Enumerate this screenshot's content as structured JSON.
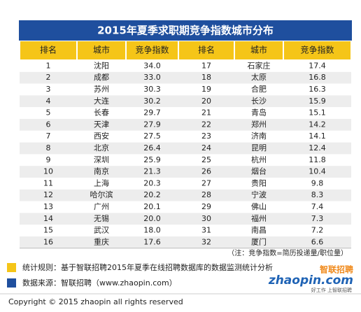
{
  "header": {
    "title": "2015年夏季求职期竞争指数城市分布"
  },
  "table": {
    "columns": [
      "排名",
      "城市",
      "竞争指数",
      "排名",
      "城市",
      "竞争指数"
    ],
    "rows": [
      [
        "1",
        "沈阳",
        "34.0",
        "17",
        "石家庄",
        "17.4"
      ],
      [
        "2",
        "成都",
        "33.0",
        "18",
        "太原",
        "16.8"
      ],
      [
        "3",
        "苏州",
        "30.3",
        "19",
        "合肥",
        "16.3"
      ],
      [
        "4",
        "大连",
        "30.2",
        "20",
        "长沙",
        "15.9"
      ],
      [
        "5",
        "长春",
        "29.7",
        "21",
        "青岛",
        "15.1"
      ],
      [
        "6",
        "天津",
        "27.9",
        "22",
        "郑州",
        "14.2"
      ],
      [
        "7",
        "西安",
        "27.5",
        "23",
        "济南",
        "14.1"
      ],
      [
        "8",
        "北京",
        "26.4",
        "24",
        "昆明",
        "12.4"
      ],
      [
        "9",
        "深圳",
        "25.9",
        "25",
        "杭州",
        "11.8"
      ],
      [
        "10",
        "南京",
        "21.3",
        "26",
        "烟台",
        "10.4"
      ],
      [
        "11",
        "上海",
        "20.3",
        "27",
        "贵阳",
        "9.8"
      ],
      [
        "12",
        "哈尔滨",
        "20.2",
        "28",
        "宁波",
        "8.3"
      ],
      [
        "13",
        "广州",
        "20.1",
        "29",
        "佛山",
        "7.4"
      ],
      [
        "14",
        "无锡",
        "20.0",
        "30",
        "福州",
        "7.3"
      ],
      [
        "15",
        "武汉",
        "18.0",
        "31",
        "南昌",
        "7.2"
      ],
      [
        "16",
        "重庆",
        "17.6",
        "32",
        "厦门",
        "6.6"
      ]
    ]
  },
  "note": "（注：竞争指数=简历投递量/职位量）",
  "footer": {
    "rule": "统计规则：基于智联招聘2015年夏季在线招聘数据库的数据监测统计分析",
    "source": "数据来源：智联招聘（www.zhaopin.com）"
  },
  "logo": {
    "brand": "智联招聘",
    "domain": "zhaopin.com",
    "slogan": "好工作 上智联招聘"
  },
  "copyright": "Copyright  ©  2015 zhaopin all rights reserved"
}
